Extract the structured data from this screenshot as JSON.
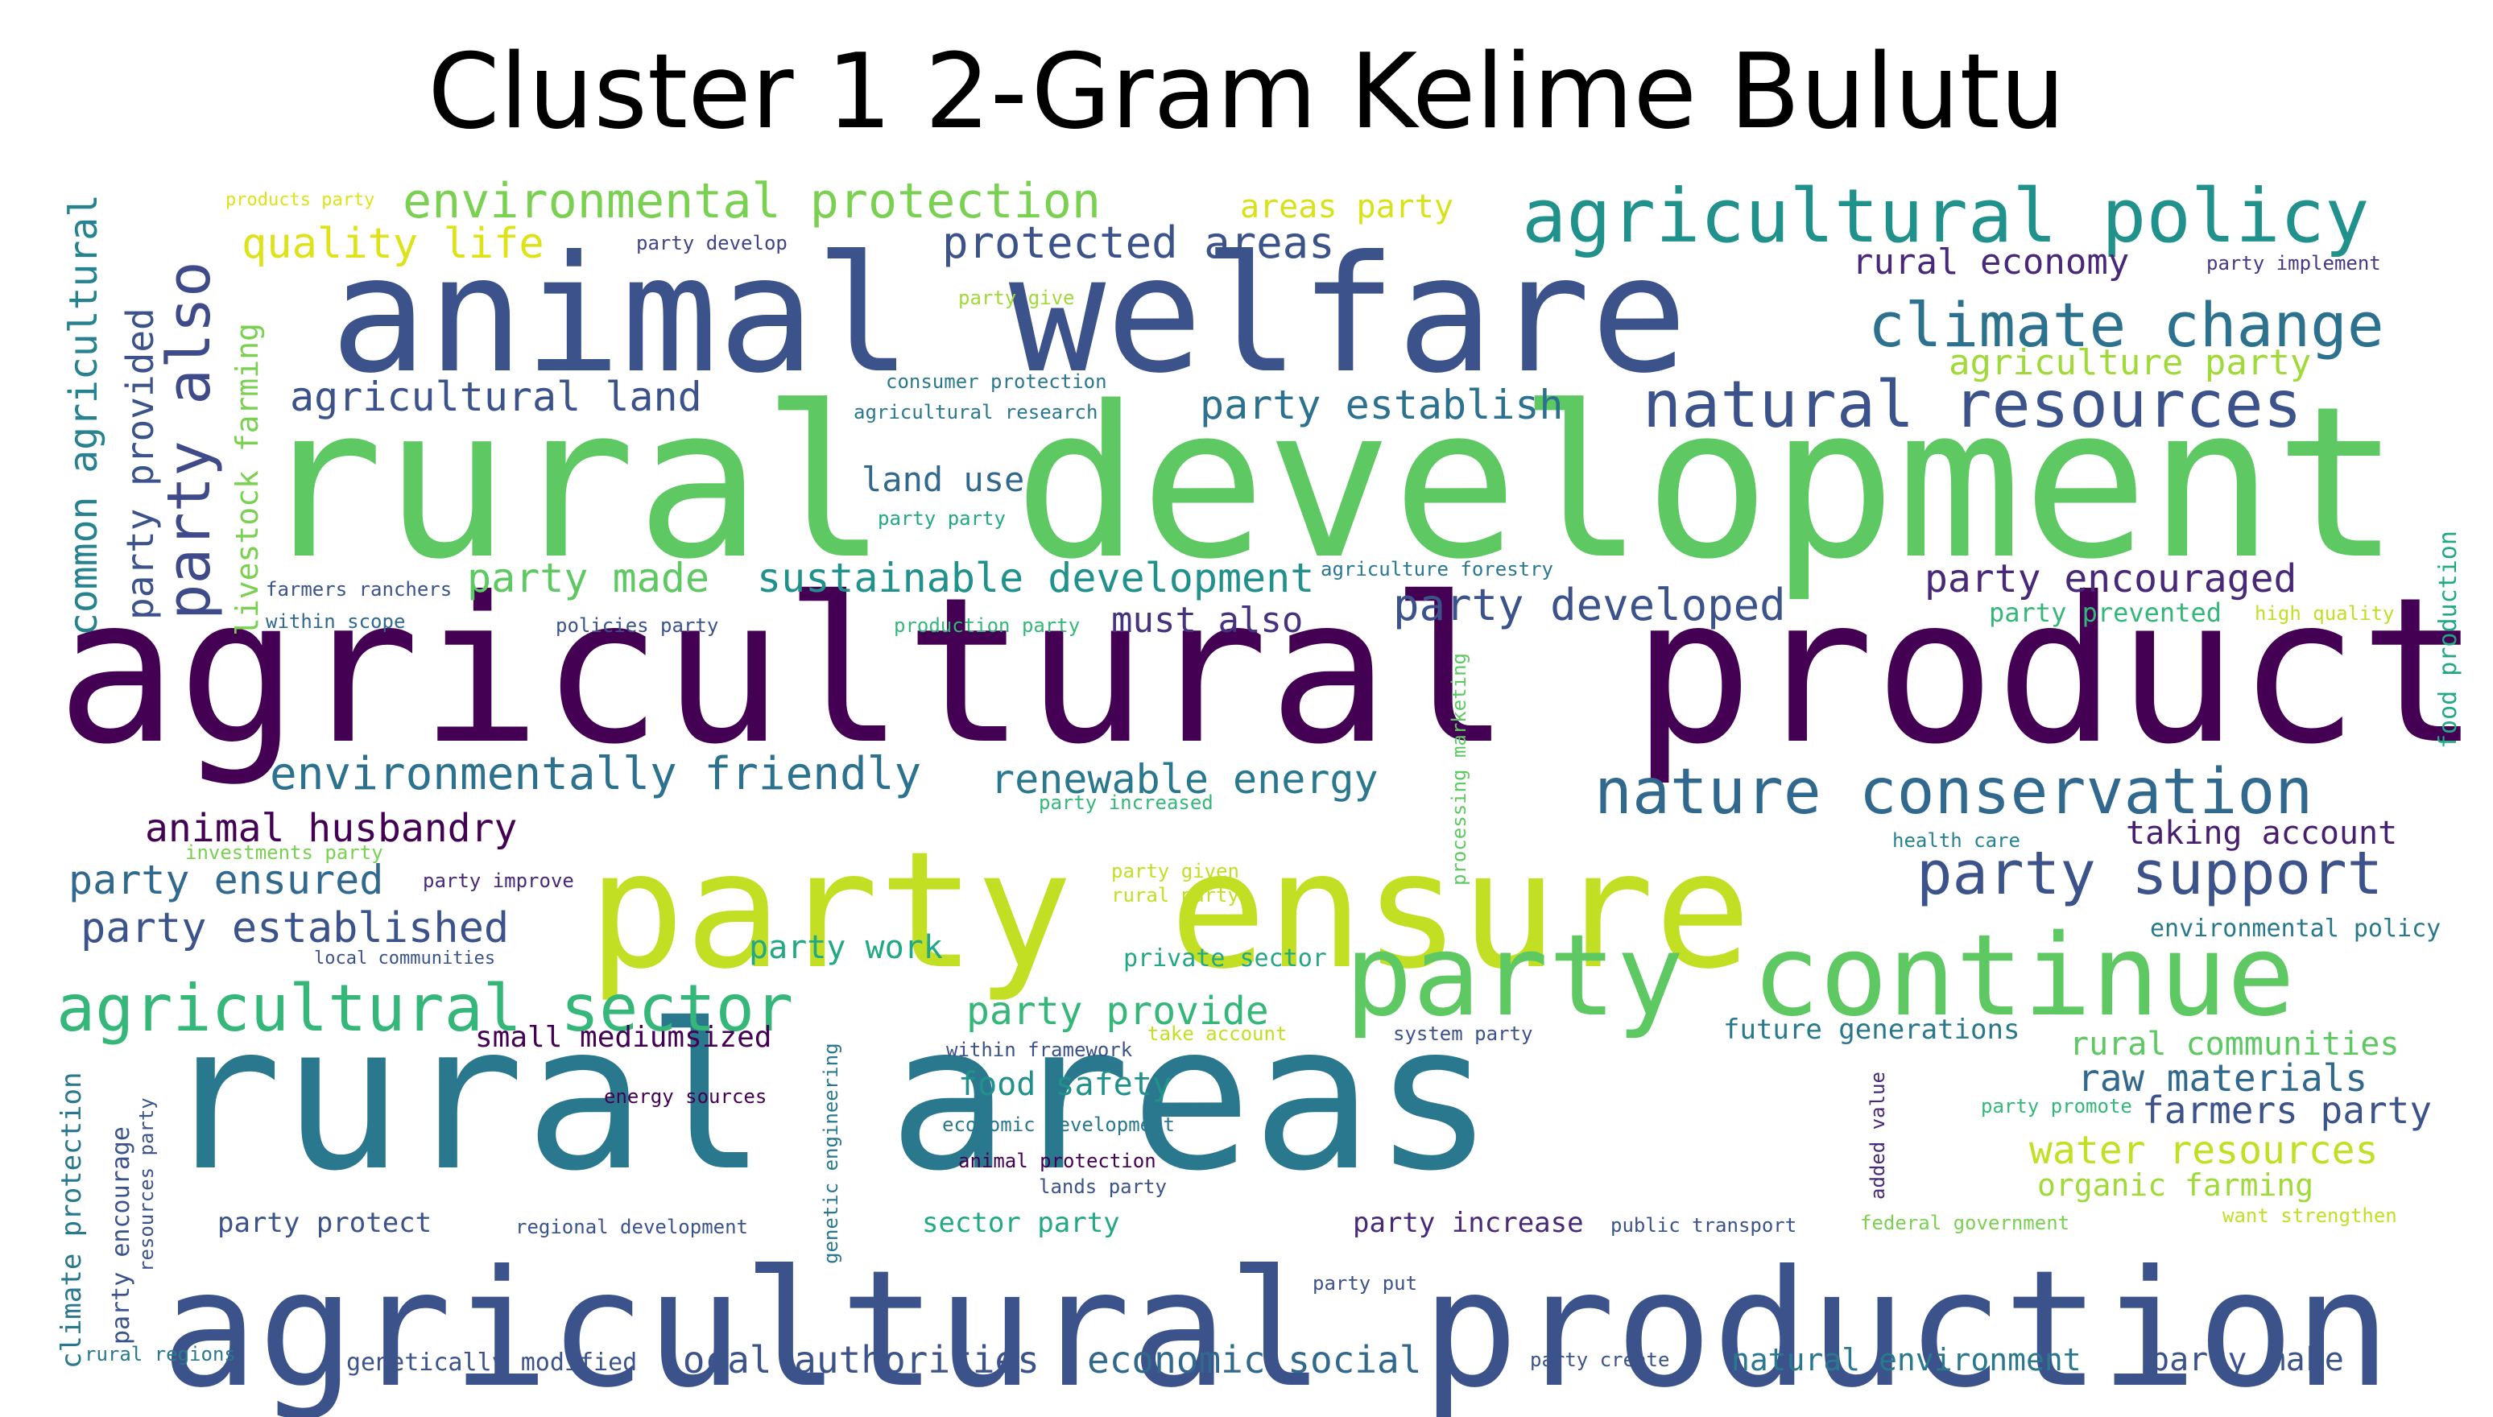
{
  "title": "Cluster 1 2-Gram Kelime Bulutu",
  "words": [
    {
      "text": "rural development",
      "color": "#5ec962"
    },
    {
      "text": "agricultural products",
      "color": "#440154"
    },
    {
      "text": "animal welfare",
      "color": "#3b528b"
    },
    {
      "text": "rural areas",
      "color": "#2a788e"
    },
    {
      "text": "party ensure",
      "color": "#c2df23"
    },
    {
      "text": "agricultural production",
      "color": "#3b528b"
    },
    {
      "text": "party continue",
      "color": "#5ec962"
    },
    {
      "text": "agricultural policy",
      "color": "#21918c"
    },
    {
      "text": "climate change",
      "color": "#2c728e"
    },
    {
      "text": "natural resources",
      "color": "#3b528b"
    },
    {
      "text": "nature conservation",
      "color": "#31688e"
    },
    {
      "text": "agricultural sector",
      "color": "#35b779"
    },
    {
      "text": "party support",
      "color": "#3b528b"
    },
    {
      "text": "party also",
      "color": "#3e4a89"
    },
    {
      "text": "environmental protection",
      "color": "#7ad151"
    },
    {
      "text": "protected areas",
      "color": "#3b528b"
    },
    {
      "text": "quality life",
      "color": "#dde318"
    },
    {
      "text": "areas party",
      "color": "#d8e219"
    },
    {
      "text": "rural economy",
      "color": "#482878"
    },
    {
      "text": "party implement",
      "color": "#443983"
    },
    {
      "text": "party develop",
      "color": "#414487"
    },
    {
      "text": "products party",
      "color": "#dde318"
    },
    {
      "text": "party give",
      "color": "#a0da39"
    },
    {
      "text": "agriculture party",
      "color": "#a0da39"
    },
    {
      "text": "agricultural land",
      "color": "#3b528b"
    },
    {
      "text": "consumer protection",
      "color": "#2a788e"
    },
    {
      "text": "agricultural research",
      "color": "#2a788e"
    },
    {
      "text": "party establish",
      "color": "#2c728e"
    },
    {
      "text": "land use",
      "color": "#31688e"
    },
    {
      "text": "party party",
      "color": "#22a884"
    },
    {
      "text": "common agricultural",
      "color": "#26828e"
    },
    {
      "text": "party provided",
      "color": "#3b528b"
    },
    {
      "text": "livestock farming",
      "color": "#7ad151"
    },
    {
      "text": "party made",
      "color": "#5ec962"
    },
    {
      "text": "sustainable development",
      "color": "#21918c"
    },
    {
      "text": "agriculture forestry",
      "color": "#2a788e"
    },
    {
      "text": "party encouraged",
      "color": "#482878"
    },
    {
      "text": "farmers ranchers",
      "color": "#3b528b"
    },
    {
      "text": "within scope",
      "color": "#31688e"
    },
    {
      "text": "policies party",
      "color": "#3b528b"
    },
    {
      "text": "production party",
      "color": "#35b779"
    },
    {
      "text": "must also",
      "color": "#46327e"
    },
    {
      "text": "party developed",
      "color": "#3b528b"
    },
    {
      "text": "party prevented",
      "color": "#35b779"
    },
    {
      "text": "high quality",
      "color": "#c2df23"
    },
    {
      "text": "food production",
      "color": "#22a884"
    },
    {
      "text": "processing marketing",
      "color": "#5ec962"
    },
    {
      "text": "environmentally friendly",
      "color": "#2c728e"
    },
    {
      "text": "renewable energy",
      "color": "#2a788e"
    },
    {
      "text": "party increased",
      "color": "#35b779"
    },
    {
      "text": "animal husbandry",
      "color": "#440154"
    },
    {
      "text": "investments party",
      "color": "#7ad151"
    },
    {
      "text": "party ensured",
      "color": "#31688e"
    },
    {
      "text": "party improve",
      "color": "#482878"
    },
    {
      "text": "party given",
      "color": "#c2df23"
    },
    {
      "text": "rural party",
      "color": "#c2df23"
    },
    {
      "text": "health care",
      "color": "#26828e"
    },
    {
      "text": "taking account",
      "color": "#481f70"
    },
    {
      "text": "party established",
      "color": "#3b528b"
    },
    {
      "text": "local communities",
      "color": "#3b528b"
    },
    {
      "text": "party work",
      "color": "#22a884"
    },
    {
      "text": "private sector",
      "color": "#22a884"
    },
    {
      "text": "environmental policy",
      "color": "#2a788e"
    },
    {
      "text": "party provide",
      "color": "#35b779"
    },
    {
      "text": "small mediumsized",
      "color": "#440154"
    },
    {
      "text": "within framework",
      "color": "#3b528b"
    },
    {
      "text": "take account",
      "color": "#c2df23"
    },
    {
      "text": "system party",
      "color": "#3b528b"
    },
    {
      "text": "future generations",
      "color": "#2a788e"
    },
    {
      "text": "rural communities",
      "color": "#5ec962"
    },
    {
      "text": "food safety",
      "color": "#21918c"
    },
    {
      "text": "raw materials",
      "color": "#31688e"
    },
    {
      "text": "farmers party",
      "color": "#3b528b"
    },
    {
      "text": "climate protection",
      "color": "#2a788e"
    },
    {
      "text": "party encourage",
      "color": "#3b528b"
    },
    {
      "text": "resources party",
      "color": "#3b528b"
    },
    {
      "text": "energy sources",
      "color": "#440154"
    },
    {
      "text": "genetic engineering",
      "color": "#2a788e"
    },
    {
      "text": "economic development",
      "color": "#2a788e"
    },
    {
      "text": "animal protection",
      "color": "#440154"
    },
    {
      "text": "lands party",
      "color": "#3b528b"
    },
    {
      "text": "added value",
      "color": "#482878"
    },
    {
      "text": "party promote",
      "color": "#35b779"
    },
    {
      "text": "water resources",
      "color": "#c2df23"
    },
    {
      "text": "organic farming",
      "color": "#a0da39"
    },
    {
      "text": "want strengthen",
      "color": "#c2df23"
    },
    {
      "text": "party protect",
      "color": "#3b528b"
    },
    {
      "text": "regional development",
      "color": "#3b528b"
    },
    {
      "text": "sector party",
      "color": "#22a884"
    },
    {
      "text": "party increase",
      "color": "#482878"
    },
    {
      "text": "public transport",
      "color": "#3b528b"
    },
    {
      "text": "federal government",
      "color": "#7ad151"
    },
    {
      "text": "party put",
      "color": "#3b528b"
    },
    {
      "text": "rural regions",
      "color": "#2a788e"
    },
    {
      "text": "genetically modified",
      "color": "#3b528b"
    },
    {
      "text": "local authorities",
      "color": "#3b528b"
    },
    {
      "text": "economic social",
      "color": "#31688e"
    },
    {
      "text": "party create",
      "color": "#3b528b"
    },
    {
      "text": "natural environment",
      "color": "#2a788e"
    },
    {
      "text": "party make",
      "color": "#3b528b"
    }
  ]
}
